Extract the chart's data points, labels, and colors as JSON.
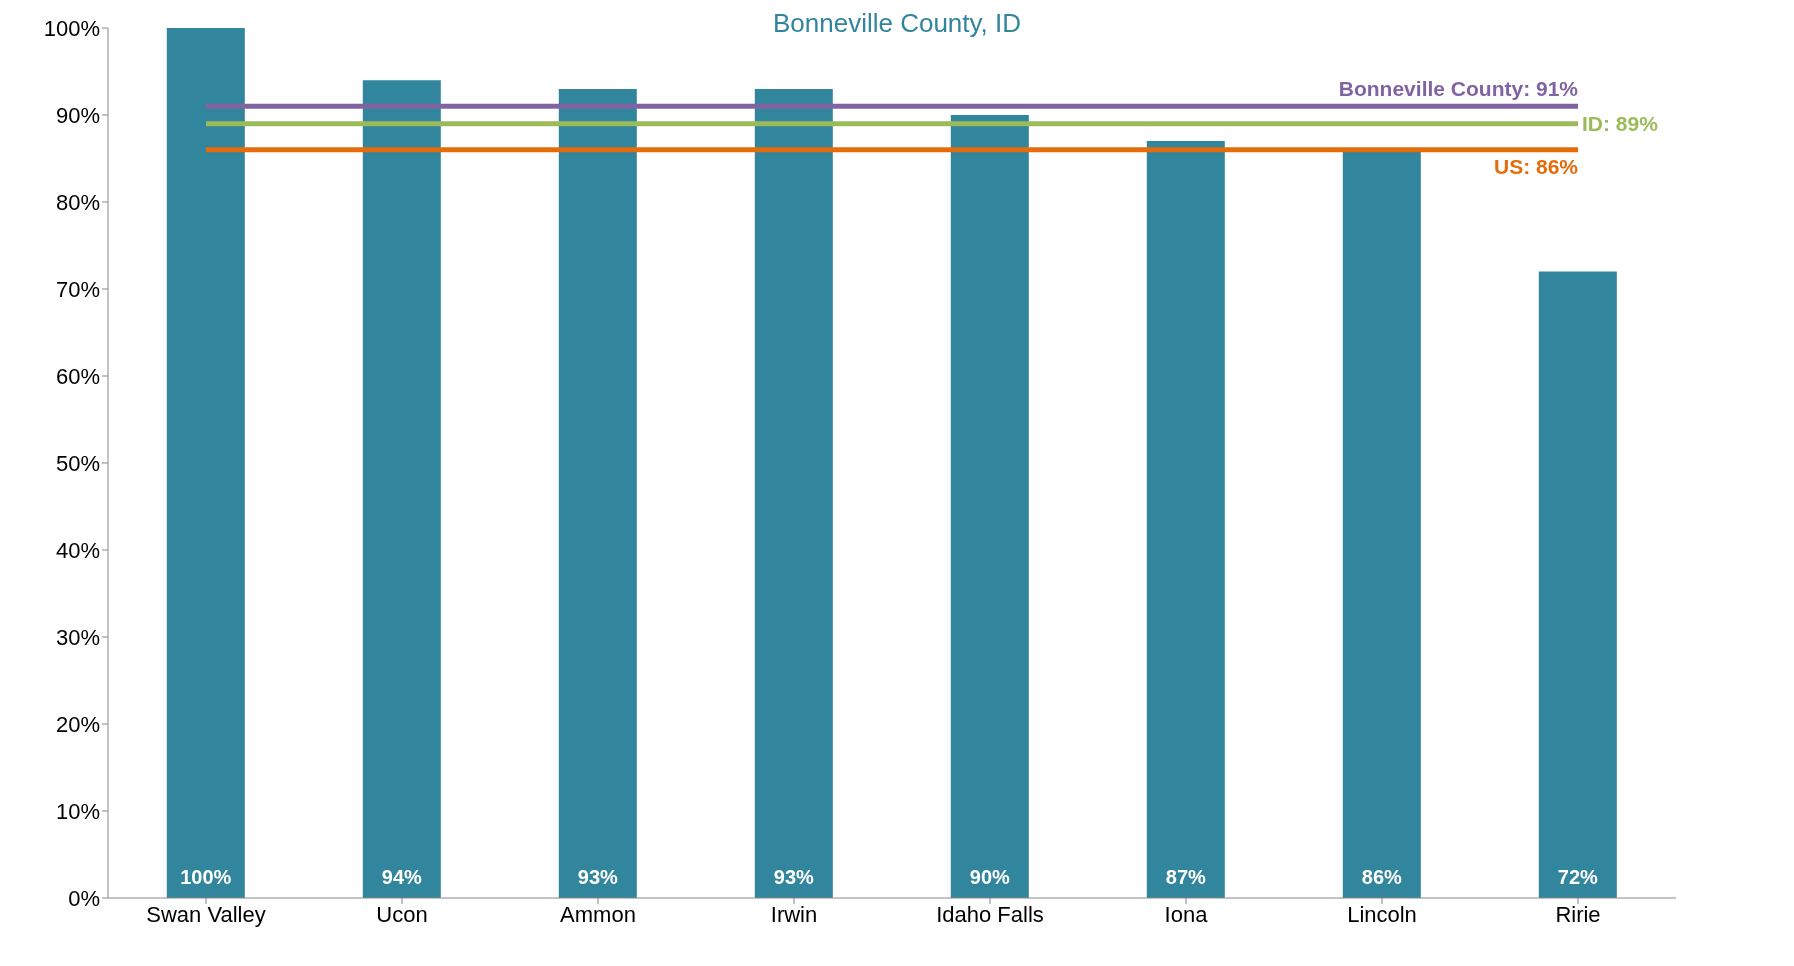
{
  "chart_data": {
    "type": "bar",
    "title": "Bonneville  County, ID",
    "categories": [
      "Swan Valley",
      "Ucon",
      "Ammon",
      "Irwin",
      "Idaho Falls",
      "Iona",
      "Lincoln",
      "Ririe"
    ],
    "values": [
      100,
      94,
      93,
      93,
      90,
      87,
      86,
      72
    ],
    "color": "#31859c",
    "value_labels": [
      "100%",
      "94%",
      "93%",
      "93%",
      "90%",
      "87%",
      "86%",
      "72%"
    ],
    "ylim": [
      0,
      100
    ],
    "yticks": [
      {
        "value": 0,
        "label": "0%"
      },
      {
        "value": 10,
        "label": "10%"
      },
      {
        "value": 20,
        "label": "20%"
      },
      {
        "value": 30,
        "label": "30%"
      },
      {
        "value": 40,
        "label": "40%"
      },
      {
        "value": 50,
        "label": "50%"
      },
      {
        "value": 60,
        "label": "60%"
      },
      {
        "value": 70,
        "label": "70%"
      },
      {
        "value": 80,
        "label": "80%"
      },
      {
        "value": 90,
        "label": "90%"
      },
      {
        "value": 100,
        "label": "100%"
      }
    ],
    "grid": false,
    "legend": false,
    "ref_lines": [
      {
        "axis": "y",
        "value": 91,
        "label": "Bonneville County: 91%",
        "color": "#8064a2"
      },
      {
        "axis": "y",
        "value": 89,
        "label": "ID: 89%",
        "color": "#9bbb59"
      },
      {
        "axis": "y",
        "value": 86,
        "label": "US: 86%",
        "color": "#e46c0a"
      }
    ]
  }
}
